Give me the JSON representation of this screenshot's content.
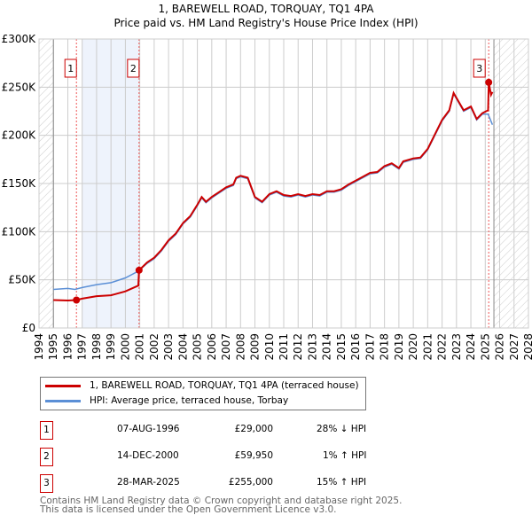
{
  "chart_data": {
    "type": "line",
    "title": "1, BAREWELL ROAD, TORQUAY, TQ1 4PA",
    "subtitle": "Price paid vs. HM Land Registry's House Price Index (HPI)",
    "xlim": [
      1994,
      2028
    ],
    "ylim": [
      0,
      300000
    ],
    "x_ticks": [
      "1994",
      "1995",
      "1996",
      "1997",
      "1998",
      "1999",
      "2000",
      "2001",
      "2002",
      "2003",
      "2004",
      "2005",
      "2006",
      "2007",
      "2008",
      "2009",
      "2010",
      "2011",
      "2012",
      "2013",
      "2014",
      "2015",
      "2016",
      "2017",
      "2018",
      "2019",
      "2020",
      "2021",
      "2022",
      "2023",
      "2024",
      "2025",
      "2026",
      "2027",
      "2028"
    ],
    "y_ticks": [
      {
        "v": 0,
        "label": "£0"
      },
      {
        "v": 50000,
        "label": "£50K"
      },
      {
        "v": 100000,
        "label": "£100K"
      },
      {
        "v": 150000,
        "label": "£150K"
      },
      {
        "v": 200000,
        "label": "£200K"
      },
      {
        "v": 250000,
        "label": "£250K"
      },
      {
        "v": 300000,
        "label": "£300K"
      }
    ],
    "grid": true,
    "series": [
      {
        "name": "1, BAREWELL ROAD, TORQUAY, TQ1 4PA (terraced house)",
        "color": "#cc0000",
        "x": [
          1995,
          1996,
          1996.6,
          1997,
          1998,
          1999,
          2000,
          2000.9,
          2000.95,
          2001.5,
          2002,
          2002.5,
          2003,
          2003.5,
          2004,
          2004.5,
          2005,
          2005.3,
          2005.6,
          2006,
          2006.5,
          2007,
          2007.5,
          2007.7,
          2008,
          2008.5,
          2009,
          2009.5,
          2010,
          2010.5,
          2011,
          2011.5,
          2012,
          2012.5,
          2013,
          2013.5,
          2014,
          2014.5,
          2015,
          2015.5,
          2016,
          2016.5,
          2017,
          2017.5,
          2018,
          2018.5,
          2019,
          2019.3,
          2020,
          2020.5,
          2021,
          2021.5,
          2022,
          2022.5,
          2022.8,
          2023.5,
          2024,
          2024.4,
          2024.8,
          2025.2,
          2025.24,
          2025.4,
          2025.5
        ],
        "y": [
          29000,
          28500,
          29000,
          30500,
          33000,
          34000,
          38000,
          44000,
          59950,
          68000,
          73000,
          81000,
          91000,
          98000,
          109000,
          116000,
          128000,
          136000,
          131000,
          136000,
          141000,
          146000,
          149000,
          156000,
          158000,
          156000,
          136000,
          131000,
          139000,
          142000,
          138000,
          137000,
          139000,
          137000,
          139000,
          138000,
          142000,
          142000,
          144000,
          149000,
          153000,
          157000,
          161000,
          162000,
          168000,
          171000,
          166000,
          173000,
          176000,
          177000,
          186000,
          201000,
          216000,
          226000,
          244000,
          226000,
          230000,
          217000,
          223000,
          226000,
          255000,
          242000,
          245000
        ]
      },
      {
        "name": "HPI: Average price, terraced house, Torbay",
        "color": "#5b8fd6",
        "x": [
          1995,
          1996,
          1996.5,
          1997,
          1998,
          1999,
          2000,
          2000.9,
          2001.5,
          2002,
          2002.5,
          2003,
          2003.5,
          2004,
          2004.5,
          2005,
          2005.3,
          2005.6,
          2006,
          2006.5,
          2007,
          2007.5,
          2007.7,
          2008,
          2008.5,
          2009,
          2009.5,
          2010,
          2010.5,
          2011,
          2011.5,
          2012,
          2012.5,
          2013,
          2013.5,
          2014,
          2014.5,
          2015,
          2015.5,
          2016,
          2016.5,
          2017,
          2017.5,
          2018,
          2018.5,
          2019,
          2019.3,
          2020,
          2020.5,
          2021,
          2021.5,
          2022,
          2022.5,
          2022.8,
          2023.5,
          2024,
          2024.4,
          2024.8,
          2025.2,
          2025.5
        ],
        "y": [
          40000,
          41000,
          40000,
          42000,
          45000,
          47000,
          52000,
          59000,
          67000,
          72000,
          80000,
          90000,
          97000,
          108000,
          115000,
          127000,
          135000,
          130000,
          135000,
          140000,
          145000,
          148000,
          155000,
          157000,
          155000,
          135000,
          130000,
          138000,
          141000,
          137000,
          136000,
          138000,
          136000,
          138000,
          137000,
          141000,
          141000,
          143000,
          148000,
          152000,
          156000,
          160000,
          161000,
          167000,
          170000,
          165000,
          172000,
          175000,
          176000,
          185000,
          200000,
          215000,
          225000,
          243000,
          225000,
          229000,
          216000,
          222000,
          222000,
          211000
        ]
      }
    ],
    "sales": [
      {
        "label": "1",
        "x": 1996.6,
        "y": 29000
      },
      {
        "label": "2",
        "x": 2000.95,
        "y": 59950
      },
      {
        "label": "3",
        "x": 2025.24,
        "y": 255000
      }
    ],
    "shaded_period": [
      1997.0,
      2000.95
    ],
    "hatched_before": 1995,
    "hatched_after": 2025.6
  },
  "legend": {
    "items": [
      "1, BAREWELL ROAD, TORQUAY, TQ1 4PA (terraced house)",
      "HPI: Average price, terraced house, Torbay"
    ]
  },
  "transactions": [
    {
      "num": "1",
      "date": "07-AUG-1996",
      "price": "£29,000",
      "hpi": "28% ↓ HPI"
    },
    {
      "num": "2",
      "date": "14-DEC-2000",
      "price": "£59,950",
      "hpi": "1% ↑ HPI"
    },
    {
      "num": "3",
      "date": "28-MAR-2025",
      "price": "£255,000",
      "hpi": "15% ↑ HPI"
    }
  ],
  "footer": {
    "line1": "Contains HM Land Registry data © Crown copyright and database right 2025.",
    "line2": "This data is licensed under the Open Government Licence v3.0."
  }
}
